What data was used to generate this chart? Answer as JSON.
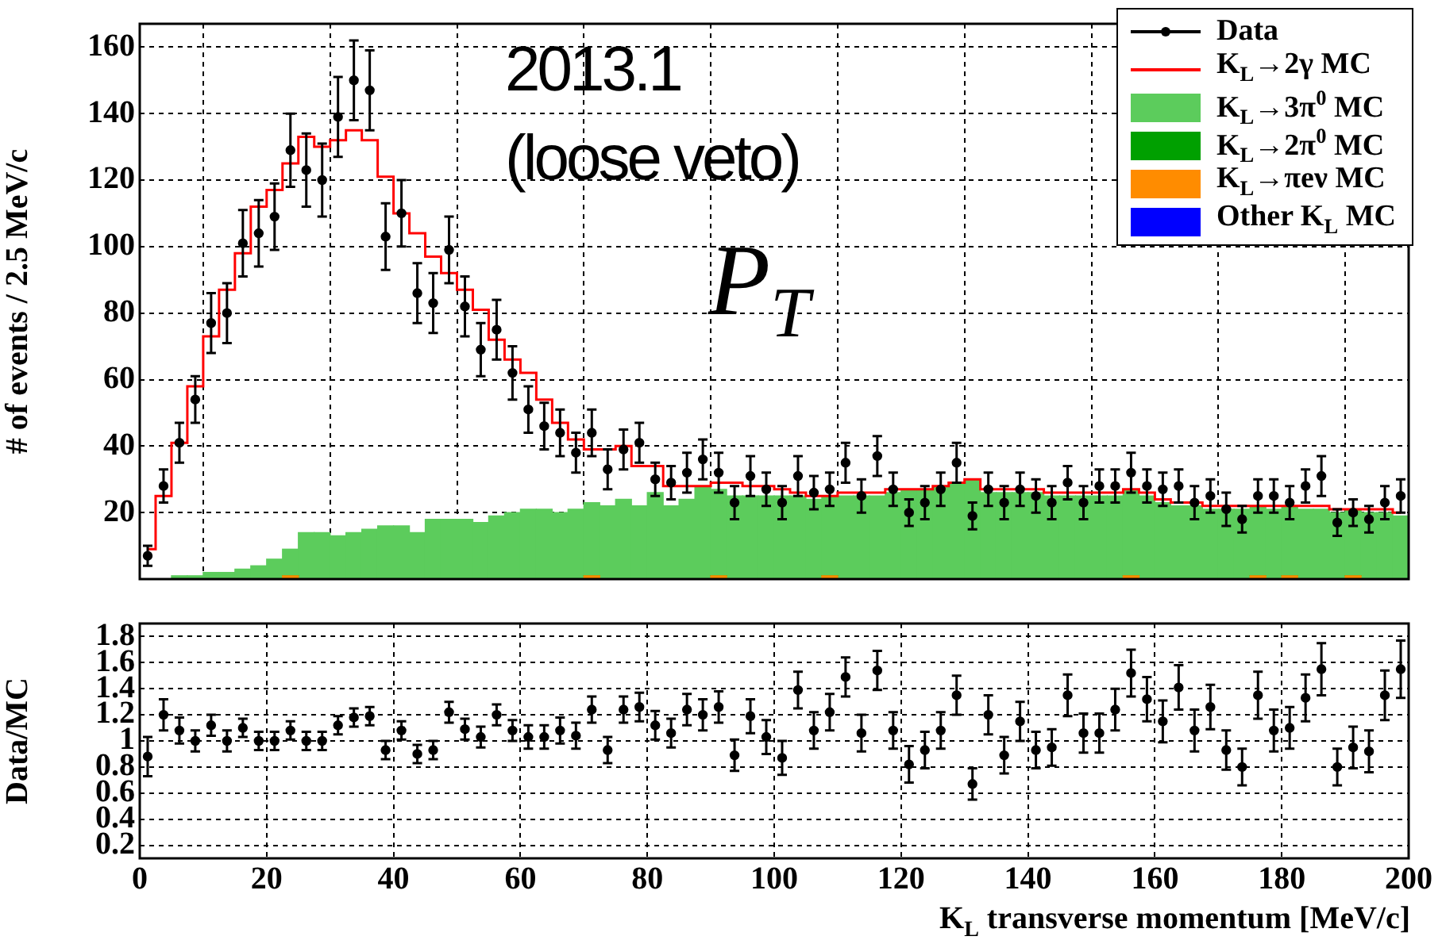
{
  "chart_data": [
    {
      "type": "bar",
      "stacked": true,
      "ylabel": "# of events / 2.5 MeV/c",
      "xlim": [
        0,
        200
      ],
      "xticks": [
        0,
        20,
        40,
        60,
        80,
        100,
        120,
        140,
        160,
        180,
        200
      ],
      "ylim": [
        0,
        167
      ],
      "yticks": [
        20,
        40,
        60,
        80,
        100,
        120,
        140,
        160
      ],
      "tick_labels": "y",
      "grid": true,
      "legend": "top right",
      "annotations": [
        "2013.1",
        "(loose veto)",
        "P$_{T}$"
      ],
      "x": [
        1.25,
        3.75,
        6.25,
        8.75,
        11.25,
        13.75,
        16.25,
        18.75,
        21.25,
        23.75,
        26.25,
        28.75,
        31.25,
        33.75,
        36.25,
        38.75,
        41.25,
        43.75,
        46.25,
        48.75,
        51.25,
        53.75,
        56.25,
        58.75,
        61.25,
        63.75,
        66.25,
        68.75,
        71.25,
        73.75,
        76.25,
        78.75,
        81.25,
        83.75,
        86.25,
        88.75,
        91.25,
        93.75,
        96.25,
        98.75,
        101.25,
        103.75,
        106.25,
        108.75,
        111.25,
        113.75,
        116.25,
        118.75,
        121.25,
        123.75,
        126.25,
        128.75,
        131.25,
        133.75,
        136.25,
        138.75,
        141.25,
        143.75,
        146.25,
        148.75,
        151.25,
        153.75,
        156.25,
        158.75,
        161.25,
        163.75,
        166.25,
        168.75,
        171.25,
        173.75,
        176.25,
        178.75,
        181.25,
        183.75,
        186.25,
        188.75,
        191.25,
        193.75,
        196.25,
        198.75
      ],
      "series": [
        {
          "name": "Data",
          "type": "scatter",
          "color": "#000000",
          "marker": "circle",
          "values": [
            7,
            28,
            41,
            54,
            77,
            80,
            101,
            104,
            109,
            129,
            123,
            120,
            139,
            150,
            147,
            103,
            110,
            86,
            83,
            99,
            82,
            69,
            75,
            62,
            51,
            46,
            44,
            38,
            44,
            33,
            39,
            41,
            30,
            29,
            32,
            36,
            32,
            23,
            31,
            27,
            23,
            31,
            26,
            27,
            35,
            25,
            37,
            27,
            20,
            23,
            27,
            35,
            19,
            27,
            23,
            27,
            25,
            23,
            29,
            23,
            28,
            28,
            32,
            28,
            27,
            28,
            23,
            25,
            21,
            18,
            25,
            25,
            23,
            28,
            31,
            17,
            20,
            18,
            23,
            25
          ],
          "errors": [
            3,
            5,
            6,
            7,
            9,
            9,
            10,
            10,
            10,
            11,
            11,
            11,
            12,
            12,
            12,
            10,
            10,
            9,
            9,
            10,
            9,
            8,
            9,
            8,
            7,
            7,
            7,
            6,
            7,
            6,
            6,
            6,
            5,
            5,
            6,
            6,
            6,
            5,
            6,
            5,
            5,
            6,
            5,
            5,
            6,
            5,
            6,
            5,
            4,
            5,
            5,
            6,
            4,
            5,
            5,
            5,
            5,
            5,
            5,
            5,
            5,
            5,
            6,
            5,
            5,
            5,
            5,
            5,
            5,
            4,
            5,
            5,
            5,
            5,
            6,
            4,
            4,
            4,
            5,
            5
          ]
        },
        {
          "name": "K$_{L}$→2γ MC",
          "type": "step",
          "color": "#ff0000",
          "values": [
            9,
            25,
            41,
            58,
            73,
            87,
            98,
            112,
            117,
            125,
            133,
            130,
            132,
            135,
            132,
            121,
            110,
            104,
            97,
            92,
            87,
            81,
            72,
            66,
            62,
            54,
            47,
            42,
            39,
            39,
            40,
            34,
            34,
            28,
            28,
            28,
            29,
            29,
            28,
            28,
            27,
            26,
            25,
            25,
            26,
            26,
            26,
            27,
            27,
            27,
            28,
            29,
            30,
            27,
            27,
            27,
            27,
            26,
            26,
            26,
            26,
            26,
            27,
            26,
            24,
            23,
            23,
            22,
            22,
            22,
            22,
            22,
            22,
            22,
            22,
            21,
            21,
            21,
            21,
            20
          ]
        },
        {
          "name": "Other K$_{L}$ MC",
          "color": "#0000ff",
          "values": [
            0,
            0,
            0,
            0,
            0,
            0,
            0,
            0,
            0,
            0,
            0,
            0,
            0,
            0,
            0,
            0,
            0,
            0,
            0,
            0,
            0,
            0,
            0,
            0,
            0,
            0,
            0,
            0,
            0,
            0,
            0,
            0,
            0,
            0,
            0,
            0,
            0,
            0,
            0,
            0,
            0,
            0,
            0,
            0,
            0,
            0,
            0,
            0,
            0,
            0,
            0,
            0,
            0,
            0,
            0,
            0,
            0,
            0,
            0,
            0,
            0,
            0,
            0,
            0,
            0,
            0,
            0,
            0,
            0,
            0,
            0,
            0,
            0,
            0,
            0,
            0,
            0,
            0,
            0,
            0
          ]
        },
        {
          "name": "K$_{L}$→πeν MC",
          "color": "#ff8c00",
          "values": [
            0,
            0,
            0,
            0,
            0,
            0,
            0,
            0,
            0,
            1,
            0,
            0,
            0,
            0,
            0,
            0,
            0,
            0,
            0,
            0,
            0,
            0,
            0,
            0,
            0,
            0,
            0,
            0,
            1,
            0,
            0,
            0,
            0,
            0,
            0,
            0,
            1,
            0,
            0,
            0,
            0,
            0,
            0,
            1,
            0,
            0,
            0,
            0,
            0,
            0,
            0,
            0,
            0,
            0,
            0,
            0,
            0,
            0,
            0,
            0,
            0,
            0,
            1,
            0,
            0,
            0,
            0,
            0,
            0,
            0,
            1,
            0,
            1,
            0,
            0,
            0,
            1,
            0,
            0,
            0
          ]
        },
        {
          "name": "K$_{L}$→2π$^{0}$ MC",
          "color": "#00a000",
          "values": [
            0,
            0,
            0,
            0,
            0,
            0,
            0,
            0,
            0,
            0,
            0,
            0,
            0,
            0,
            0,
            0,
            0,
            0,
            0,
            0,
            0,
            0,
            0,
            0,
            0,
            0,
            0,
            0,
            0,
            0,
            0,
            0,
            0,
            0,
            0,
            0,
            0,
            0,
            0,
            0,
            0,
            0,
            0,
            0,
            0,
            0,
            0,
            0,
            0,
            0,
            0,
            0,
            0,
            0,
            0,
            0,
            0,
            0,
            0,
            0,
            0,
            0,
            0,
            0,
            0,
            0,
            0,
            0,
            0,
            0,
            0,
            0,
            0,
            0,
            0,
            0,
            0,
            0,
            0,
            0
          ]
        },
        {
          "name": "K$_{L}$→3π$^{0}$ MC",
          "color": "#5ccc5c",
          "values": [
            0,
            0,
            1,
            1,
            2,
            2,
            3,
            4,
            6,
            8,
            14,
            14,
            13,
            14,
            15,
            16,
            16,
            14,
            18,
            18,
            18,
            17,
            19,
            20,
            21,
            21,
            20,
            21,
            22,
            22,
            24,
            22,
            26,
            22,
            24,
            28,
            26,
            25,
            25,
            25,
            25,
            25,
            24,
            24,
            25,
            25,
            25,
            26,
            27,
            27,
            28,
            29,
            30,
            26,
            26,
            26,
            26,
            25,
            25,
            25,
            25,
            25,
            26,
            25,
            23,
            22,
            22,
            21,
            21,
            21,
            21,
            21,
            21,
            21,
            21,
            20,
            20,
            20,
            20,
            19
          ]
        }
      ]
    },
    {
      "type": "scatter",
      "ylabel": "Data/MC",
      "xlabel": "K$_{L}$ transverse momentum [MeV/c]",
      "xlim": [
        0,
        200
      ],
      "xticks": [
        0,
        20,
        40,
        60,
        80,
        100,
        120,
        140,
        160,
        180,
        200
      ],
      "ylim": [
        0.1,
        1.9
      ],
      "yticks": [
        0.2,
        0.4,
        0.6,
        0.8,
        1,
        1.2,
        1.4,
        1.6,
        1.8
      ],
      "grid": true,
      "marker": "circle",
      "x": [
        1.25,
        3.75,
        6.25,
        8.75,
        11.25,
        13.75,
        16.25,
        18.75,
        21.25,
        23.75,
        26.25,
        28.75,
        31.25,
        33.75,
        36.25,
        38.75,
        41.25,
        43.75,
        46.25,
        48.75,
        51.25,
        53.75,
        56.25,
        58.75,
        61.25,
        63.75,
        66.25,
        68.75,
        71.25,
        73.75,
        76.25,
        78.75,
        81.25,
        83.75,
        86.25,
        88.75,
        91.25,
        93.75,
        96.25,
        98.75,
        101.25,
        103.75,
        106.25,
        108.75,
        111.25,
        113.75,
        116.25,
        118.75,
        121.25,
        123.75,
        126.25,
        128.75,
        131.25,
        133.75,
        136.25,
        138.75,
        141.25,
        143.75,
        146.25,
        148.75,
        151.25,
        153.75,
        156.25,
        158.75,
        161.25,
        163.75,
        166.25,
        168.75,
        171.25,
        173.75,
        176.25,
        178.75,
        181.25,
        183.75,
        186.25,
        188.75,
        191.25,
        193.75,
        196.25,
        198.75
      ],
      "series": [
        {
          "color": "#000000",
          "values": [
            0.88,
            1.2,
            1.08,
            1.0,
            1.12,
            1.0,
            1.1,
            1.0,
            1.0,
            1.08,
            1.0,
            1.0,
            1.12,
            1.18,
            1.19,
            0.93,
            1.08,
            0.9,
            0.93,
            1.22,
            1.09,
            1.03,
            1.2,
            1.08,
            1.03,
            1.03,
            1.08,
            1.04,
            1.24,
            0.93,
            1.24,
            1.26,
            1.12,
            1.06,
            1.24,
            1.2,
            1.26,
            0.89,
            1.19,
            1.03,
            0.87,
            1.39,
            1.08,
            1.22,
            1.49,
            1.06,
            1.54,
            1.08,
            0.82,
            0.93,
            1.08,
            1.35,
            0.67,
            1.2,
            0.89,
            1.15,
            0.93,
            0.95,
            1.35,
            1.06,
            1.06,
            1.24,
            1.52,
            1.32,
            1.15,
            1.41,
            1.08,
            1.26,
            0.93,
            0.8,
            1.35,
            1.08,
            1.1,
            1.33,
            1.55,
            0.8,
            0.95,
            0.92,
            1.35,
            1.55
          ],
          "errors": [
            0.15,
            0.12,
            0.1,
            0.08,
            0.08,
            0.08,
            0.07,
            0.07,
            0.07,
            0.07,
            0.07,
            0.07,
            0.07,
            0.07,
            0.07,
            0.07,
            0.07,
            0.07,
            0.07,
            0.08,
            0.08,
            0.08,
            0.08,
            0.08,
            0.09,
            0.09,
            0.1,
            0.1,
            0.1,
            0.1,
            0.1,
            0.11,
            0.11,
            0.11,
            0.12,
            0.12,
            0.12,
            0.12,
            0.13,
            0.13,
            0.13,
            0.14,
            0.14,
            0.14,
            0.15,
            0.14,
            0.15,
            0.14,
            0.14,
            0.14,
            0.14,
            0.15,
            0.12,
            0.15,
            0.14,
            0.15,
            0.14,
            0.14,
            0.16,
            0.15,
            0.15,
            0.16,
            0.18,
            0.17,
            0.16,
            0.17,
            0.16,
            0.17,
            0.15,
            0.14,
            0.18,
            0.16,
            0.16,
            0.18,
            0.2,
            0.14,
            0.16,
            0.16,
            0.19,
            0.22
          ]
        }
      ]
    }
  ]
}
